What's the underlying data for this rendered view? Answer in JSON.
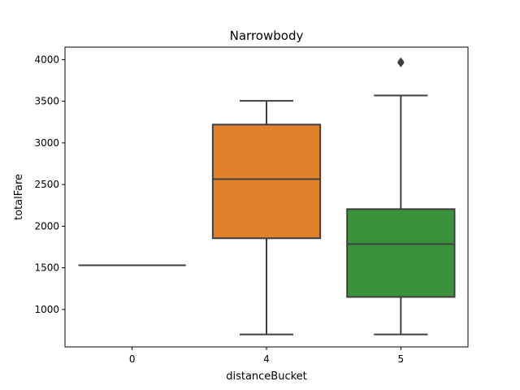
{
  "chart_data": {
    "type": "box",
    "title": "Narrowbody",
    "xlabel": "distanceBucket",
    "ylabel": "totalFare",
    "categories": [
      "0",
      "4",
      "5"
    ],
    "ylim": [
      550,
      4150
    ],
    "yticks": [
      1000,
      1500,
      2000,
      2500,
      3000,
      3500,
      4000
    ],
    "ytick_labels": [
      "1000",
      "1500",
      "2000",
      "2500",
      "3000",
      "3500",
      "4000"
    ],
    "grid": false,
    "boxes": [
      {
        "category": "0",
        "whisker_low": 1530,
        "q1": 1530,
        "median": 1530,
        "q3": 1530,
        "whisker_high": 1530,
        "outliers": [],
        "color": "#3274a1"
      },
      {
        "category": "4",
        "whisker_low": 700,
        "q1": 1855,
        "median": 2565,
        "q3": 3220,
        "whisker_high": 3505,
        "outliers": [],
        "color": "#e1812c"
      },
      {
        "category": "5",
        "whisker_low": 700,
        "q1": 1150,
        "median": 1785,
        "q3": 2205,
        "whisker_high": 3570,
        "outliers": [
          3960,
          3975
        ],
        "color": "#3a923a"
      }
    ],
    "line_color": "#3f3f3f"
  }
}
